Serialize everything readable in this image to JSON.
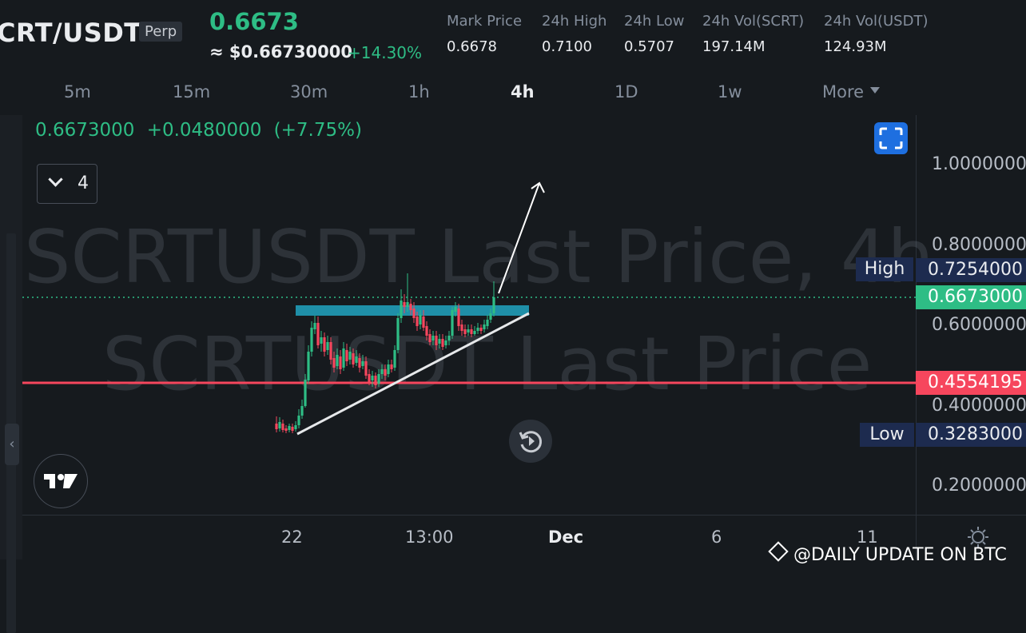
{
  "header": {
    "symbol": "CRT/USDT",
    "contract_type": "Perp",
    "last_price": "0.6673",
    "usd_approx": "≈ $0.66730000",
    "change_pct": "+14.30%",
    "stats": [
      {
        "label": "Mark Price",
        "value": "0.6678"
      },
      {
        "label": "24h High",
        "value": "0.7100"
      },
      {
        "label": "24h Low",
        "value": "0.5707"
      },
      {
        "label": "24h Vol(SCRT)",
        "value": "197.14M"
      },
      {
        "label": "24h Vol(USDT)",
        "value": "124.93M"
      }
    ]
  },
  "timeframes": [
    "5m",
    "15m",
    "30m",
    "1h",
    "4h",
    "1D",
    "1w",
    "More"
  ],
  "active_timeframe": "4h",
  "legend": {
    "price": "0.6673000",
    "change": "+0.0480000",
    "change_pct": "(+7.75%)"
  },
  "indicator_toggle": {
    "count": "4"
  },
  "watermark": {
    "line1": "SCRTUSDT Last Price, 4h",
    "line2": "SCRTUSDT Last Price"
  },
  "price_axis": {
    "labels": [
      "1.0000000",
      "0.8000000",
      "0.6000000",
      "0.4000000",
      "0.2000000"
    ]
  },
  "price_tags": {
    "high_label": "High",
    "high_value": "0.7254000",
    "current_value": "0.6673000",
    "support_value": "0.4554195",
    "low_label": "Low",
    "low_value": "0.3283000"
  },
  "time_axis": {
    "labels": [
      "22",
      "13:00",
      "Dec",
      "6",
      "11"
    ]
  },
  "colors": {
    "up": "#2ebd85",
    "down": "#f6465d",
    "background": "#161a1e",
    "accent_blue": "#1e6fe0",
    "resistance_band": "#1f8fa8",
    "tag_navy": "#1d2b4f"
  },
  "icons": {
    "fullscreen": "fullscreen-icon",
    "reset": "reset-icon",
    "logo": "tradingview-logo-icon",
    "settings": "gear-icon",
    "collapse": "chevron-left-icon"
  },
  "footer": {
    "credit": "@DAILY UPDATE ON BTC"
  }
}
